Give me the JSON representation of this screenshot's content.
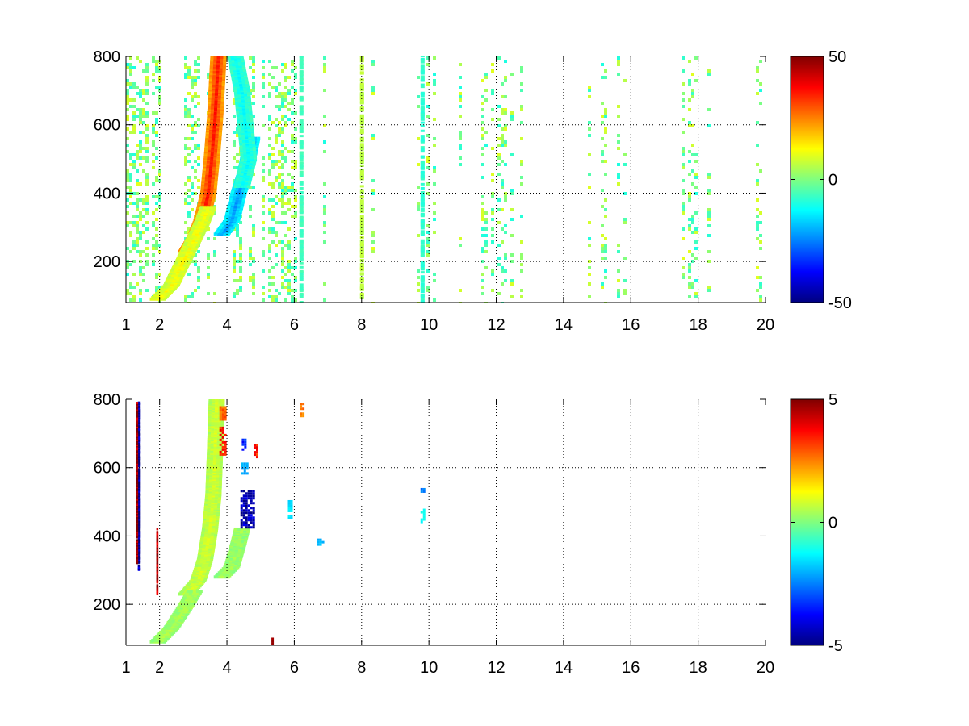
{
  "chart_data": [
    {
      "type": "heatmap",
      "title": "",
      "xlabel": "",
      "ylabel": "",
      "xlim": [
        1,
        20
      ],
      "ylim": [
        80,
        800
      ],
      "x_ticks": [
        1,
        2,
        4,
        6,
        8,
        10,
        12,
        14,
        16,
        18,
        20
      ],
      "x_tick_labels": [
        "1",
        "2",
        "4",
        "6",
        "8",
        "10",
        "12",
        "14",
        "16",
        "18",
        "20"
      ],
      "y_ticks": [
        200,
        400,
        600,
        800
      ],
      "y_tick_labels": [
        "200",
        "400",
        "600",
        "800"
      ],
      "grid": true,
      "colormap": "jet",
      "clim": [
        -50,
        50
      ],
      "colorbar": {
        "ticks": [
          50,
          0,
          -50
        ],
        "tick_labels": [
          "50",
          "0",
          "-50"
        ]
      },
      "features": [
        {
          "shape": "curve",
          "value": 35,
          "points": [
            [
              2.75,
              230
            ],
            [
              3.0,
              270
            ],
            [
              3.2,
              320
            ],
            [
              3.4,
              400
            ],
            [
              3.5,
              500
            ],
            [
              3.6,
              620
            ],
            [
              3.7,
              800
            ]
          ]
        },
        {
          "shape": "curve",
          "value": 12,
          "points": [
            [
              1.9,
              90
            ],
            [
              2.3,
              130
            ],
            [
              2.6,
              190
            ],
            [
              2.9,
              250
            ],
            [
              3.2,
              310
            ],
            [
              3.4,
              360
            ]
          ]
        },
        {
          "shape": "curve",
          "value": -22,
          "points": [
            [
              3.8,
              280
            ],
            [
              4.1,
              320
            ],
            [
              4.3,
              400
            ],
            [
              4.5,
              460
            ],
            [
              4.7,
              560
            ]
          ]
        },
        {
          "shape": "curve",
          "value": -12,
          "points": [
            [
              4.4,
              420
            ],
            [
              4.6,
              500
            ],
            [
              4.5,
              600
            ],
            [
              4.4,
              700
            ],
            [
              4.2,
              800
            ]
          ]
        },
        {
          "shape": "column",
          "x": 9.8,
          "value": -8
        },
        {
          "shape": "column",
          "x": 6.2,
          "value": -6
        },
        {
          "shape": "column",
          "x": 8.0,
          "value": 6
        }
      ],
      "background_noise": {
        "x_range": [
          1,
          20
        ],
        "values_range": [
          -10,
          10
        ],
        "density": "dense below x=6, sparse above"
      }
    },
    {
      "type": "heatmap",
      "title": "",
      "xlabel": "",
      "ylabel": "",
      "xlim": [
        1,
        20
      ],
      "ylim": [
        80,
        800
      ],
      "x_ticks": [
        1,
        2,
        4,
        6,
        8,
        10,
        12,
        14,
        16,
        18,
        20
      ],
      "x_tick_labels": [
        "1",
        "2",
        "4",
        "6",
        "8",
        "10",
        "12",
        "14",
        "16",
        "18",
        "20"
      ],
      "y_ticks": [
        200,
        400,
        600,
        800
      ],
      "y_tick_labels": [
        "200",
        "400",
        "600",
        "800"
      ],
      "grid": true,
      "colormap": "jet",
      "clim": [
        -5,
        5
      ],
      "colorbar": {
        "ticks": [
          5,
          0,
          -5
        ],
        "tick_labels": [
          "5",
          "0",
          "-5"
        ]
      },
      "features": [
        {
          "shape": "curve",
          "value": 0.8,
          "points": [
            [
              2.75,
              230
            ],
            [
              3.1,
              270
            ],
            [
              3.3,
              330
            ],
            [
              3.45,
              420
            ],
            [
              3.55,
              520
            ],
            [
              3.6,
              650
            ],
            [
              3.65,
              800
            ]
          ]
        },
        {
          "shape": "curve",
          "value": 0.4,
          "points": [
            [
              1.9,
              90
            ],
            [
              2.3,
              130
            ],
            [
              2.7,
              190
            ],
            [
              3.0,
              240
            ]
          ]
        },
        {
          "shape": "curve",
          "value": 0.3,
          "points": [
            [
              3.8,
              280
            ],
            [
              4.1,
              310
            ],
            [
              4.3,
              380
            ],
            [
              4.4,
              420
            ]
          ]
        },
        {
          "shape": "blob",
          "x": 4.6,
          "y": 480,
          "w": 0.4,
          "h": 110,
          "value": -4.5
        },
        {
          "shape": "blob",
          "x": 3.85,
          "y": 680,
          "w": 0.15,
          "h": 80,
          "value": 3.5
        },
        {
          "shape": "blob",
          "x": 3.85,
          "y": 760,
          "w": 0.15,
          "h": 40,
          "value": 2.8
        },
        {
          "shape": "blob",
          "x": 4.85,
          "y": 650,
          "w": 0.12,
          "h": 40,
          "value": 3.5
        },
        {
          "shape": "blob",
          "x": 4.5,
          "y": 670,
          "w": 0.12,
          "h": 30,
          "value": -3.5
        },
        {
          "shape": "blob",
          "x": 4.5,
          "y": 600,
          "w": 0.15,
          "h": 30,
          "value": -2.0
        },
        {
          "shape": "blob",
          "x": 5.85,
          "y": 480,
          "w": 0.08,
          "h": 50,
          "value": -1.5
        },
        {
          "shape": "blob",
          "x": 9.8,
          "y": 460,
          "w": 0.1,
          "h": 40,
          "value": -1.2
        },
        {
          "shape": "blob",
          "x": 9.8,
          "y": 540,
          "w": 0.1,
          "h": 15,
          "value": -2.5
        },
        {
          "shape": "blob",
          "x": 6.75,
          "y": 385,
          "w": 0.15,
          "h": 15,
          "value": -2.0
        },
        {
          "shape": "blob",
          "x": 6.2,
          "y": 770,
          "w": 0.08,
          "h": 40,
          "value": 2.5
        },
        {
          "shape": "blob",
          "x": 5.35,
          "y": 95,
          "w": 0.06,
          "h": 15,
          "value": 4.5
        },
        {
          "shape": "column",
          "x": 1.4,
          "y_range": [
            300,
            790
          ],
          "value": -4.8
        },
        {
          "shape": "column",
          "x": 1.35,
          "y_range": [
            320,
            790
          ],
          "value": 4.8
        },
        {
          "shape": "column",
          "x": 1.95,
          "y_range": [
            230,
            420
          ],
          "value": 4.6
        }
      ]
    }
  ]
}
